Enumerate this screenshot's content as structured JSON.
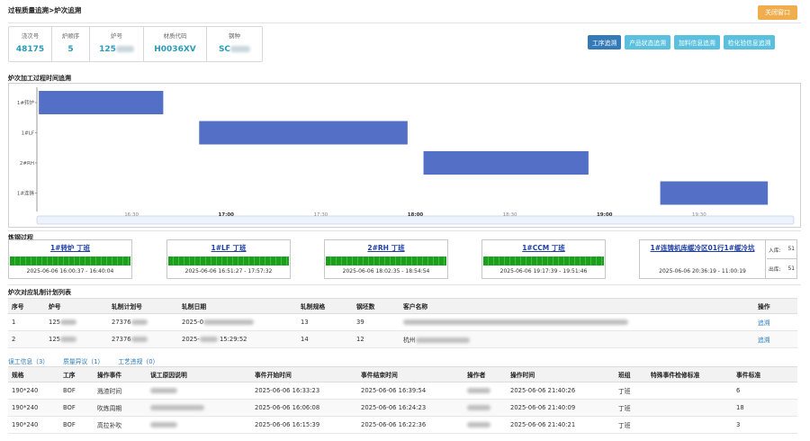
{
  "breadcrumb": "过程质量追溯>炉次追溯",
  "close_button": "关闭窗口",
  "info": [
    {
      "label": "浇次号",
      "value": "48175"
    },
    {
      "label": "炉顺序",
      "value": "5"
    },
    {
      "label": "炉号",
      "value": "125"
    },
    {
      "label": "材质代码",
      "value": "H0036XV"
    },
    {
      "label": "钢种",
      "value": "SC"
    }
  ],
  "tabs": [
    {
      "label": "工序追溯",
      "active": true
    },
    {
      "label": "产品状态追溯",
      "active": false
    },
    {
      "label": "加料信息追溯",
      "active": false
    },
    {
      "label": "检化验信息追溯",
      "active": false
    }
  ],
  "gantt": {
    "title": "炉次加工过程时间追溯",
    "categories": [
      "1#转炉",
      "1#LF",
      "2#RH",
      "1#连铸"
    ],
    "ticks": [
      "16:30",
      "17:00",
      "17:30",
      "18:00",
      "18:30",
      "19:00",
      "19:30"
    ],
    "bold_ticks": [
      "17:00",
      "18:00",
      "19:00"
    ],
    "bar_color": "#5470c6"
  },
  "chart_data": {
    "type": "bar",
    "orientation": "horizontal-gantt",
    "title": "炉次加工过程时间追溯",
    "categories": [
      "1#转炉",
      "1#LF",
      "2#RH",
      "1#连铸"
    ],
    "series": [
      {
        "values": [
          {
            "category": "1#转炉",
            "start": "16:00:37",
            "end": "16:40:04"
          },
          {
            "category": "1#LF",
            "start": "16:51:27",
            "end": "17:57:32"
          },
          {
            "category": "2#RH",
            "start": "18:02:35",
            "end": "18:54:54"
          },
          {
            "category": "1#连铸",
            "start": "19:17:39",
            "end": "19:51:46"
          }
        ]
      }
    ],
    "xlim": [
      "16:00",
      "20:00"
    ],
    "x_ticks": [
      "16:30",
      "17:00",
      "17:30",
      "18:00",
      "18:30",
      "19:00",
      "19:30"
    ]
  },
  "smelt": {
    "title": "炼钢过程",
    "cards": [
      {
        "title": "1#转炉 丁班",
        "time": "2025-06-06 16:00:37 - 16:40:04"
      },
      {
        "title": "1#LF 丁班",
        "time": "2025-06-06 16:51:27 - 17:57:32"
      },
      {
        "title": "2#RH 丁班",
        "time": "2025-06-06 18:02:35 - 18:54:54"
      },
      {
        "title": "1#CCM 丁班",
        "time": "2025-06-06 19:17:39 - 19:51:46"
      }
    ],
    "last": {
      "title": "1#连铸机库缓冷区01行1#缓冷坑",
      "time": "2025-06-06 20:36:19 - 11:00:19",
      "in_label": "入库:",
      "in_value": "51",
      "out_label": "出库:",
      "out_value": "51"
    }
  },
  "plan": {
    "title": "炉次对应轧制计划列表",
    "headers": [
      "序号",
      "炉号",
      "轧制计划号",
      "轧制日期",
      "轧制规格",
      "钢坯数",
      "客户名称",
      "操作"
    ],
    "rows": [
      {
        "seq": "1",
        "heat": "125",
        "plan": "27376",
        "date": "2025-0",
        "spec": "13",
        "count": "39",
        "customer": "",
        "op": "追溯"
      },
      {
        "seq": "2",
        "heat": "125",
        "plan": "27376",
        "date": "2025-",
        "date_suffix": "15:29:52",
        "spec": "14",
        "count": "12",
        "customer": "杭州",
        "op": "追溯"
      }
    ]
  },
  "subtabs": [
    "误工信息（3）",
    "质量异议（1）",
    "工艺违规（0）"
  ],
  "delay": {
    "headers": [
      "规格",
      "工序",
      "操作事件",
      "误工原因说明",
      "事件开始时间",
      "事件结束时间",
      "操作者",
      "操作时间",
      "班组",
      "特殊事件检修标准",
      "事件标准"
    ],
    "rows": [
      {
        "spec": "190*240",
        "proc": "BOF",
        "event": "溅渣时间",
        "reason": "",
        "start": "2025-06-06 16:33:23",
        "end": "2025-06-06 16:39:54",
        "op": "",
        "optime": "2025-06-06 21:40:26",
        "team": "丁班",
        "std": "",
        "evstd": "6"
      },
      {
        "spec": "190*240",
        "proc": "BOF",
        "event": "吹炼周期",
        "reason": "",
        "start": "2025-06-06 16:06:08",
        "end": "2025-06-06 16:24:23",
        "op": "",
        "optime": "2025-06-06 21:40:09",
        "team": "丁班",
        "std": "",
        "evstd": "18"
      },
      {
        "spec": "190*240",
        "proc": "BOF",
        "event": "高拉补吹",
        "reason": "",
        "start": "2025-06-06 16:15:39",
        "end": "2025-06-06 16:22:36",
        "op": "",
        "optime": "2025-06-06 21:40:21",
        "team": "丁班",
        "std": "",
        "evstd": "3"
      }
    ]
  }
}
